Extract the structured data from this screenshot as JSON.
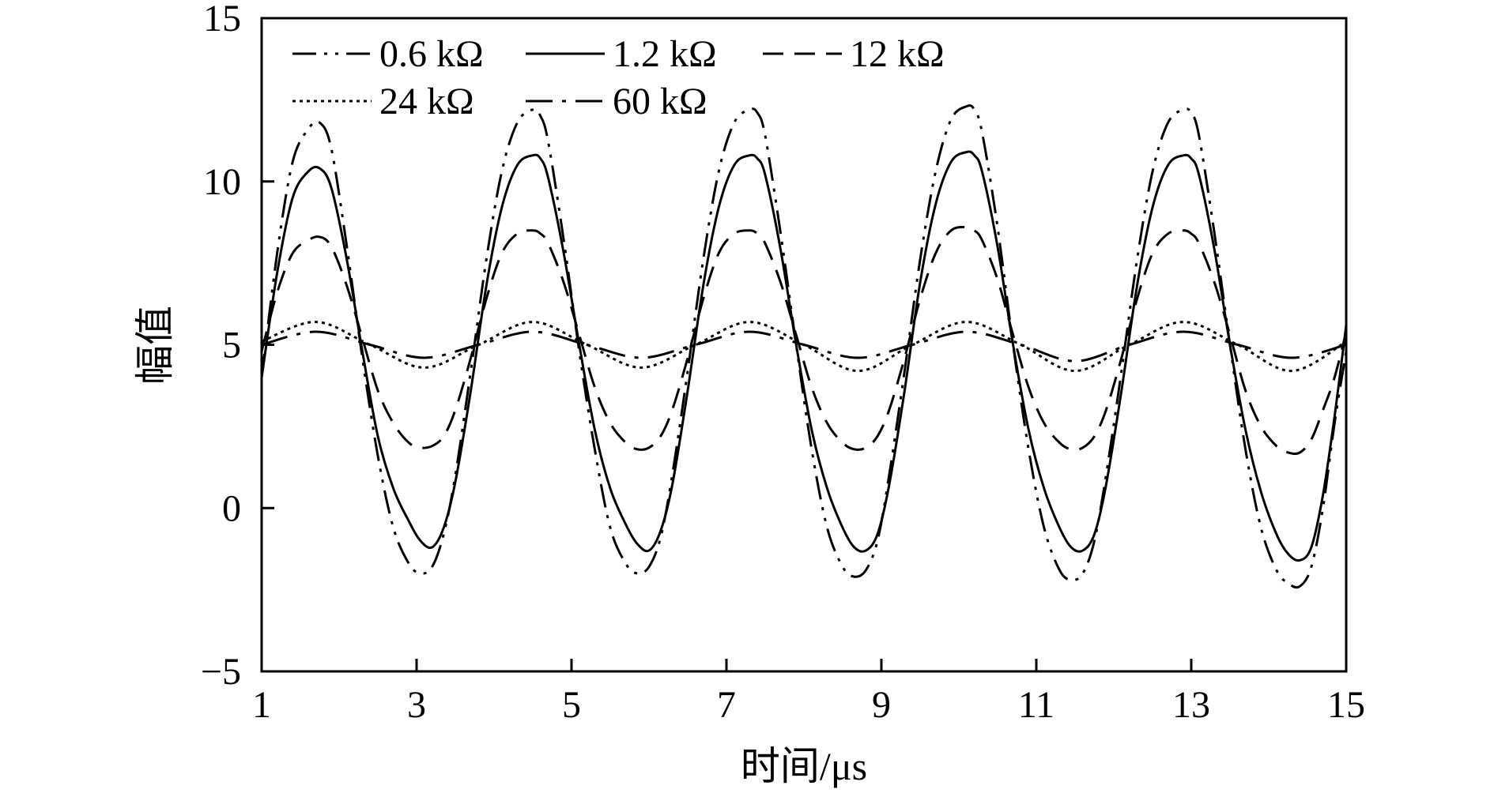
{
  "chart_data": {
    "type": "line",
    "xlabel": "时间/μs",
    "ylabel": "幅值",
    "xlim": [
      1,
      15
    ],
    "ylim": [
      -5,
      15
    ],
    "xticks": [
      1,
      3,
      5,
      7,
      9,
      11,
      13,
      15
    ],
    "yticks": [
      -5,
      0,
      5,
      10,
      15
    ],
    "ytick_labels": [
      "−5",
      "0",
      "5",
      "10",
      "15"
    ],
    "grid": false,
    "legend_position": "top-left",
    "series": [
      {
        "name": "0.6 kΩ",
        "dash": "dash-dot-dot",
        "x": [
          1.0,
          1.2,
          1.4,
          1.6,
          1.75,
          1.9,
          2.1,
          2.3,
          2.5,
          2.7,
          2.9,
          3.05,
          3.2,
          3.35,
          3.5,
          3.7,
          3.9,
          4.1,
          4.3,
          4.5,
          4.6,
          4.7,
          4.9,
          5.1,
          5.3,
          5.5,
          5.7,
          5.85,
          6.0,
          6.15,
          6.3,
          6.5,
          6.7,
          6.9,
          7.1,
          7.3,
          7.4,
          7.5,
          7.7,
          7.9,
          8.1,
          8.3,
          8.5,
          8.65,
          8.8,
          8.95,
          9.1,
          9.3,
          9.5,
          9.7,
          9.9,
          10.1,
          10.2,
          10.3,
          10.5,
          10.7,
          10.9,
          11.1,
          11.3,
          11.45,
          11.6,
          11.75,
          11.9,
          12.1,
          12.3,
          12.5,
          12.7,
          12.9,
          13.0,
          13.1,
          13.3,
          13.5,
          13.7,
          13.9,
          14.1,
          14.25,
          14.4,
          14.55,
          14.7,
          14.85,
          15.0
        ],
        "y": [
          4.0,
          7.8,
          10.6,
          11.6,
          11.8,
          11.0,
          8.0,
          4.6,
          1.6,
          -0.6,
          -1.7,
          -2.0,
          -1.8,
          -0.8,
          1.0,
          4.2,
          7.6,
          10.3,
          11.8,
          12.2,
          12.0,
          11.2,
          8.2,
          4.8,
          1.8,
          -0.6,
          -1.7,
          -2.0,
          -1.8,
          -0.9,
          1.0,
          4.2,
          7.6,
          10.3,
          11.8,
          12.2,
          12.1,
          11.4,
          8.4,
          5.0,
          1.8,
          -0.6,
          -1.8,
          -2.1,
          -1.9,
          -1.0,
          1.0,
          4.2,
          7.6,
          10.3,
          11.9,
          12.3,
          12.2,
          11.5,
          8.6,
          5.0,
          1.8,
          -0.6,
          -1.9,
          -2.2,
          -2.0,
          -1.0,
          1.0,
          4.2,
          7.6,
          10.3,
          11.8,
          12.2,
          12.1,
          11.4,
          8.4,
          5.0,
          1.8,
          -0.6,
          -1.9,
          -2.3,
          -2.4,
          -1.8,
          0.0,
          2.6,
          4.8
        ]
      },
      {
        "name": "1.2 kΩ",
        "dash": "solid",
        "x": [
          1.0,
          1.2,
          1.4,
          1.6,
          1.75,
          1.9,
          2.1,
          2.3,
          2.5,
          2.7,
          2.9,
          3.05,
          3.2,
          3.35,
          3.5,
          3.7,
          3.9,
          4.1,
          4.3,
          4.5,
          4.6,
          4.7,
          4.9,
          5.1,
          5.3,
          5.5,
          5.7,
          5.85,
          6.0,
          6.15,
          6.3,
          6.5,
          6.7,
          6.9,
          7.1,
          7.3,
          7.4,
          7.5,
          7.7,
          7.9,
          8.1,
          8.3,
          8.5,
          8.65,
          8.8,
          8.95,
          9.1,
          9.3,
          9.5,
          9.7,
          9.9,
          10.1,
          10.2,
          10.3,
          10.5,
          10.7,
          10.9,
          11.1,
          11.3,
          11.45,
          11.6,
          11.75,
          11.9,
          12.1,
          12.3,
          12.5,
          12.7,
          12.9,
          13.0,
          13.1,
          13.3,
          13.5,
          13.7,
          13.9,
          14.1,
          14.25,
          14.4,
          14.55,
          14.7,
          14.85,
          15.0
        ],
        "y": [
          4.0,
          7.2,
          9.5,
          10.3,
          10.4,
          9.8,
          7.6,
          4.8,
          2.2,
          0.6,
          -0.4,
          -1.0,
          -1.2,
          -0.6,
          0.8,
          3.6,
          6.8,
          9.2,
          10.5,
          10.8,
          10.7,
          10.1,
          7.8,
          5.0,
          2.4,
          0.6,
          -0.5,
          -1.1,
          -1.3,
          -0.7,
          0.7,
          3.6,
          6.8,
          9.2,
          10.5,
          10.8,
          10.7,
          10.2,
          7.9,
          5.0,
          2.4,
          0.6,
          -0.6,
          -1.2,
          -1.3,
          -0.8,
          0.7,
          3.6,
          6.9,
          9.3,
          10.6,
          10.9,
          10.8,
          10.3,
          8.0,
          5.0,
          2.4,
          0.6,
          -0.6,
          -1.2,
          -1.3,
          -0.8,
          0.7,
          3.6,
          6.8,
          9.2,
          10.5,
          10.8,
          10.7,
          10.2,
          7.9,
          5.0,
          2.4,
          0.5,
          -0.8,
          -1.4,
          -1.6,
          -1.2,
          0.4,
          2.8,
          5.6
        ]
      },
      {
        "name": "12 kΩ",
        "dash": "dashed",
        "x": [
          1.0,
          1.2,
          1.4,
          1.6,
          1.75,
          1.9,
          2.1,
          2.3,
          2.5,
          2.7,
          2.9,
          3.05,
          3.2,
          3.35,
          3.5,
          3.7,
          3.9,
          4.1,
          4.3,
          4.5,
          4.6,
          4.7,
          4.9,
          5.1,
          5.3,
          5.5,
          5.7,
          5.85,
          6.0,
          6.15,
          6.3,
          6.5,
          6.7,
          6.9,
          7.1,
          7.3,
          7.4,
          7.5,
          7.7,
          7.9,
          8.1,
          8.3,
          8.5,
          8.65,
          8.8,
          8.95,
          9.1,
          9.3,
          9.5,
          9.7,
          9.9,
          10.1,
          10.2,
          10.3,
          10.5,
          10.7,
          10.9,
          11.1,
          11.3,
          11.45,
          11.6,
          11.75,
          11.9,
          12.1,
          12.3,
          12.5,
          12.7,
          12.9,
          13.0,
          13.1,
          13.3,
          13.5,
          13.7,
          13.9,
          14.1,
          14.25,
          14.4,
          14.55,
          14.7,
          14.85,
          15.0
        ],
        "y": [
          4.8,
          6.6,
          7.8,
          8.2,
          8.3,
          8.0,
          6.8,
          5.2,
          3.6,
          2.6,
          2.0,
          1.85,
          1.9,
          2.2,
          3.0,
          4.6,
          6.4,
          7.8,
          8.4,
          8.5,
          8.4,
          8.1,
          6.9,
          5.3,
          3.7,
          2.6,
          2.0,
          1.8,
          1.85,
          2.2,
          3.0,
          4.6,
          6.4,
          7.8,
          8.4,
          8.5,
          8.4,
          8.1,
          6.9,
          5.3,
          3.7,
          2.6,
          2.0,
          1.8,
          1.85,
          2.2,
          3.0,
          4.6,
          6.4,
          7.8,
          8.5,
          8.6,
          8.5,
          8.2,
          7.0,
          5.3,
          3.7,
          2.6,
          2.0,
          1.8,
          1.85,
          2.2,
          3.0,
          4.6,
          6.4,
          7.8,
          8.4,
          8.5,
          8.4,
          8.1,
          6.9,
          5.3,
          3.6,
          2.5,
          1.9,
          1.7,
          1.7,
          2.1,
          3.0,
          4.0,
          5.4
        ]
      },
      {
        "name": "24 kΩ",
        "dash": "dotted",
        "x": [
          1.0,
          1.7,
          2.4,
          3.1,
          3.8,
          4.5,
          5.2,
          5.9,
          6.6,
          7.3,
          8.0,
          8.7,
          9.4,
          10.1,
          10.8,
          11.5,
          12.2,
          12.9,
          13.6,
          14.3,
          15.0
        ],
        "y": [
          5.1,
          5.7,
          5.0,
          4.3,
          5.0,
          5.7,
          5.0,
          4.3,
          5.0,
          5.7,
          5.0,
          4.2,
          5.0,
          5.7,
          5.0,
          4.2,
          5.0,
          5.7,
          5.0,
          4.2,
          5.1
        ]
      },
      {
        "name": "60 kΩ",
        "dash": "dash-dot",
        "x": [
          1.0,
          1.7,
          2.4,
          3.1,
          3.8,
          4.5,
          5.2,
          5.9,
          6.6,
          7.3,
          8.0,
          8.7,
          9.4,
          10.1,
          10.8,
          11.5,
          12.2,
          12.9,
          13.6,
          14.3,
          15.0
        ],
        "y": [
          5.0,
          5.4,
          5.0,
          4.6,
          5.0,
          5.4,
          5.0,
          4.6,
          5.0,
          5.4,
          5.0,
          4.6,
          5.0,
          5.4,
          5.0,
          4.5,
          5.0,
          5.4,
          5.0,
          4.6,
          5.0
        ]
      }
    ]
  }
}
